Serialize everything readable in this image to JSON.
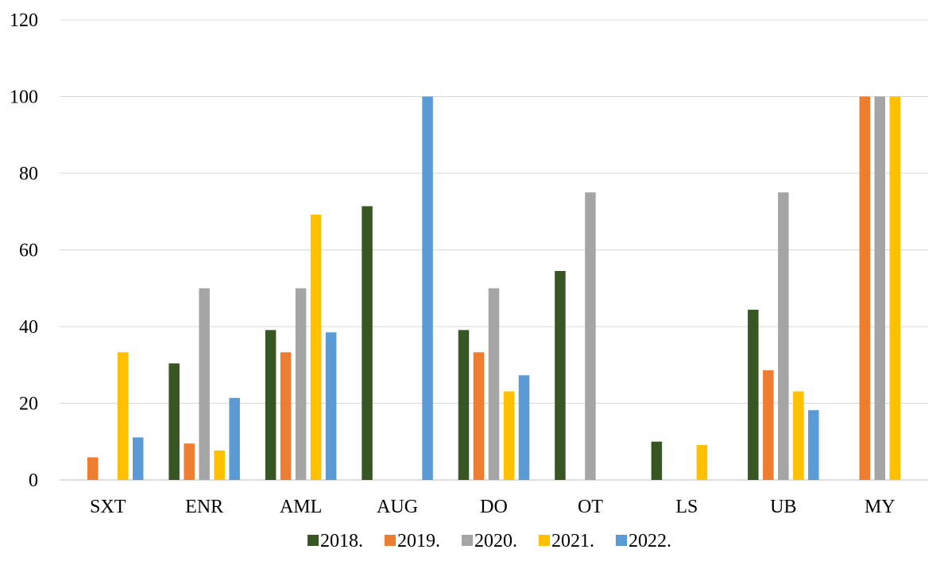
{
  "chart_data": {
    "type": "bar",
    "title": "",
    "xlabel": "",
    "ylabel": "",
    "ylim": [
      0,
      120
    ],
    "yticks": [
      0,
      20,
      40,
      60,
      80,
      100,
      120
    ],
    "grid": true,
    "legend_position": "bottom",
    "categories": [
      "SXT",
      "ENR",
      "AML",
      "AUG",
      "DO",
      "OT",
      "LS",
      "UB",
      "MY"
    ],
    "series": [
      {
        "name": "2018.",
        "color": "#375623",
        "values": [
          0,
          30.4,
          39.1,
          71.4,
          39.1,
          54.5,
          10,
          44.4,
          0
        ]
      },
      {
        "name": "2019.",
        "color": "#ED7D31",
        "values": [
          5.9,
          9.5,
          33.3,
          0,
          33.3,
          0,
          0,
          28.6,
          100
        ]
      },
      {
        "name": "2020.",
        "color": "#A5A5A5",
        "values": [
          0,
          50,
          50,
          0,
          50,
          75,
          0,
          75,
          100
        ]
      },
      {
        "name": "2021.",
        "color": "#FFC000",
        "values": [
          33.3,
          7.7,
          69.2,
          0,
          23.1,
          0,
          9.1,
          23.1,
          100
        ]
      },
      {
        "name": "2022.",
        "color": "#5B9BD5",
        "values": [
          11.1,
          21.4,
          38.5,
          100,
          27.3,
          0,
          0,
          18.2,
          0
        ]
      }
    ]
  }
}
